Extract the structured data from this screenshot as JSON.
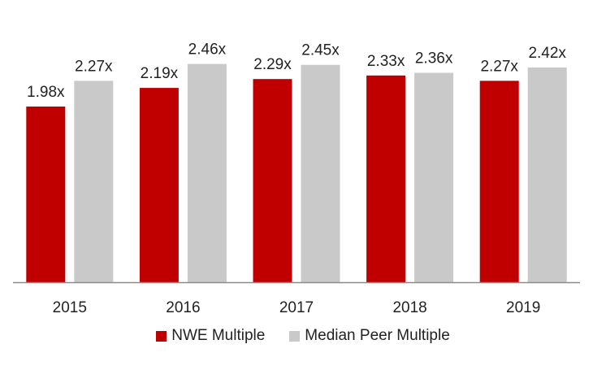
{
  "chart_data": {
    "type": "bar",
    "title": "",
    "xlabel": "",
    "ylabel": "",
    "categories": [
      "2015",
      "2016",
      "2017",
      "2018",
      "2019"
    ],
    "ylim": [
      0,
      2.75
    ],
    "grid": false,
    "legend_position": "bottom",
    "series": [
      {
        "name": "NWE Multiple",
        "color": "#C00000",
        "values": [
          1.98,
          2.19,
          2.29,
          2.33,
          2.27
        ],
        "labels": [
          "1.98x",
          "2.19x",
          "2.29x",
          "2.33x",
          "2.27x"
        ]
      },
      {
        "name": "Median Peer Multiple",
        "color": "#C9C9C9",
        "values": [
          2.27,
          2.46,
          2.45,
          2.36,
          2.42
        ],
        "labels": [
          "2.27x",
          "2.46x",
          "2.45x",
          "2.36x",
          "2.42x"
        ]
      }
    ]
  }
}
